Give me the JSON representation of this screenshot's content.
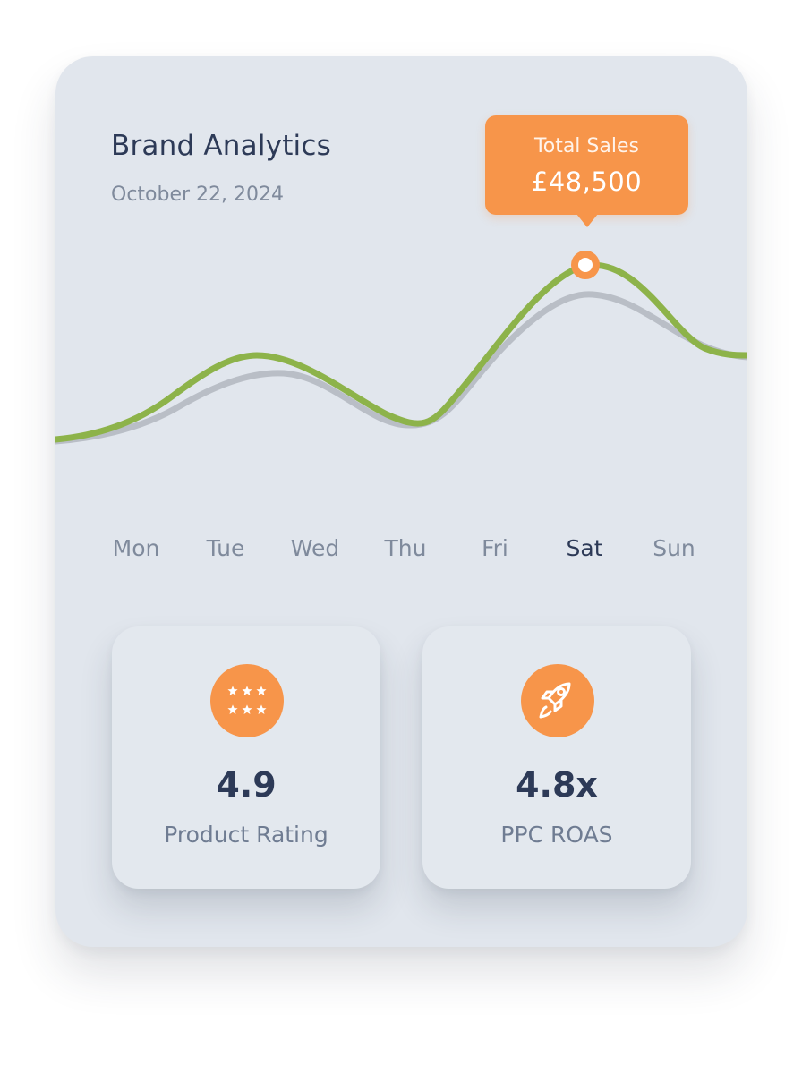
{
  "header": {
    "title": "Brand Analytics",
    "date": "October 22, 2024"
  },
  "tooltip": {
    "label": "Total Sales",
    "value": "£48,500"
  },
  "days": [
    "Mon",
    "Tue",
    "Wed",
    "Thu",
    "Fri",
    "Sat",
    "Sun"
  ],
  "active_day": "Sat",
  "stats": [
    {
      "icon": "stars-icon",
      "value": "4.9",
      "label": "Product Rating"
    },
    {
      "icon": "rocket-icon",
      "value": "4.8x",
      "label": "PPC ROAS"
    }
  ],
  "colors": {
    "card_bg": "#e1e6ed",
    "accent": "#f7954a",
    "primary_line": "#8db34a",
    "secondary_line": "#b9bec6",
    "text_dark": "#2d3a57",
    "text_muted": "#7f8a9c"
  }
}
